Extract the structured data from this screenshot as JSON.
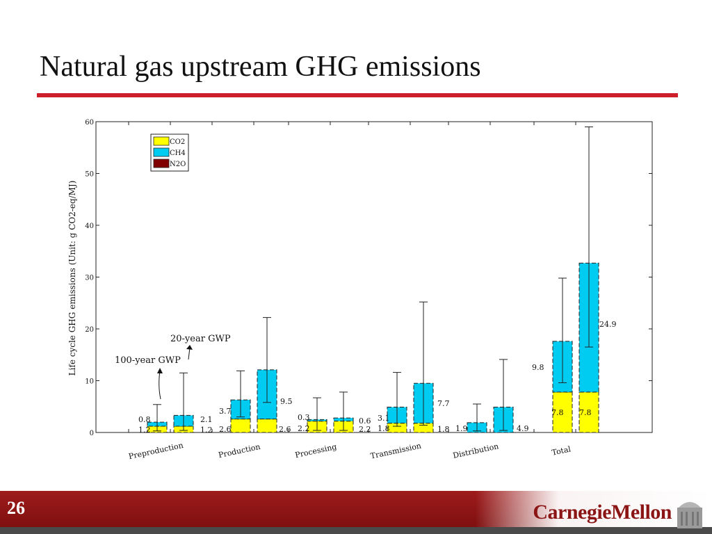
{
  "slide": {
    "title": "Natural gas upstream GHG emissions",
    "number": "26",
    "brand": "CarnegieMellon"
  },
  "colors": {
    "co2": "#ffff00",
    "ch4": "#00ccf2",
    "n2o": "#800000",
    "accent": "#cc1f2a",
    "footer": "#8b1414"
  },
  "chart_data": {
    "type": "bar",
    "subtype": "stacked-grouped-with-error-bars",
    "ylabel": "Life cycle GHG emissions (Unit: g CO2-eq/MJ)",
    "ylim": [
      0,
      60
    ],
    "yticks": [
      0,
      10,
      20,
      30,
      40,
      50,
      60
    ],
    "grid": false,
    "legend": {
      "position": "top-left",
      "entries": [
        "CO2",
        "CH4",
        "N2O"
      ]
    },
    "categories": [
      "Preproduction",
      "Production",
      "Processing",
      "Transmission",
      "Distribution",
      "Total"
    ],
    "bar_groups": [
      "100-year GWP",
      "20-year GWP"
    ],
    "series": [
      {
        "name": "CO2",
        "gwp100": [
          1.2,
          2.6,
          2.2,
          1.8,
          0,
          7.8
        ],
        "gwp20": [
          1.2,
          2.6,
          2.2,
          1.8,
          0,
          7.8
        ]
      },
      {
        "name": "CH4",
        "gwp100": [
          0.8,
          3.7,
          0.3,
          3.1,
          1.9,
          9.8
        ],
        "gwp20": [
          2.1,
          9.5,
          0.6,
          7.7,
          4.9,
          24.9
        ]
      }
    ],
    "error_bars": {
      "gwp100": [
        [
          0.3,
          5.4
        ],
        [
          3.0,
          11.9
        ],
        [
          0.4,
          6.7
        ],
        [
          1.2,
          11.6
        ],
        [
          0.3,
          5.5
        ],
        [
          9.6,
          29.8
        ]
      ],
      "gwp20": [
        [
          0.4,
          11.5
        ],
        [
          5.8,
          22.2
        ],
        [
          0.4,
          7.8
        ],
        [
          1.4,
          25.2
        ],
        [
          0.4,
          14.1
        ],
        [
          16.5,
          59.0
        ]
      ]
    },
    "value_labels": [
      {
        "text": "0.8"
      },
      {
        "text": "1.2"
      },
      {
        "text": "2.1"
      },
      {
        "text": "1.2"
      },
      {
        "text": "3.7"
      },
      {
        "text": "2.6"
      },
      {
        "text": "9.5"
      },
      {
        "text": "2.6"
      },
      {
        "text": "0.3"
      },
      {
        "text": "2.2"
      },
      {
        "text": "0.6"
      },
      {
        "text": "2.2"
      },
      {
        "text": "3.1"
      },
      {
        "text": "1.8"
      },
      {
        "text": "7.7"
      },
      {
        "text": "1.8"
      },
      {
        "text": "1.9"
      },
      {
        "text": "4.9"
      },
      {
        "text": "9.8"
      },
      {
        "text": "7.8"
      },
      {
        "text": "7.8"
      },
      {
        "text": "24.9"
      }
    ],
    "annotations": [
      {
        "text": "20-year GWP"
      },
      {
        "text": "100-year GWP"
      }
    ]
  }
}
